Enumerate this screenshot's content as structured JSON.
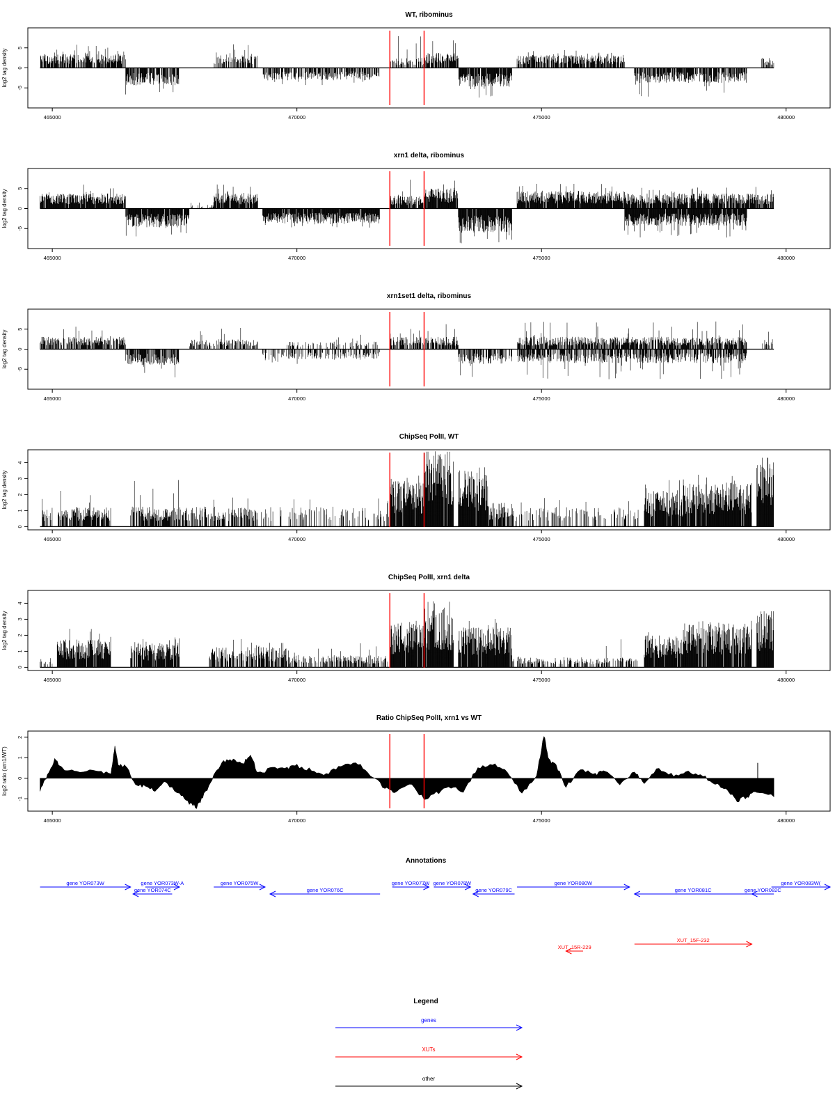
{
  "chart_data": [
    {
      "type": "bar",
      "title": "WT, ribominus",
      "ylabel": "log2 tag density",
      "xlim": [
        464500,
        480900
      ],
      "ylim": [
        -10,
        10
      ],
      "yticks": [
        -5,
        0,
        5
      ],
      "xticks": [
        465000,
        470000,
        475000,
        480000
      ],
      "x_start": 464750,
      "x_end": 479750,
      "markers": [
        471900,
        472600
      ],
      "segments": [
        {
          "from": 464750,
          "to": 466500,
          "strand": "+",
          "amp": 2.8,
          "max": 5.8,
          "density": 0.8
        },
        {
          "from": 466500,
          "to": 467600,
          "strand": "-",
          "amp": 3.5,
          "max": 6.8,
          "density": 0.8
        },
        {
          "from": 468300,
          "to": 469200,
          "strand": "+",
          "amp": 2.5,
          "max": 6.5,
          "density": 0.6
        },
        {
          "from": 469300,
          "to": 471700,
          "strand": "-",
          "amp": 2.5,
          "max": 4.5,
          "density": 0.7
        },
        {
          "from": 471900,
          "to": 472600,
          "strand": "+",
          "amp": 2.0,
          "max": 8.0,
          "density": 0.5
        },
        {
          "from": 472600,
          "to": 473300,
          "strand": "+",
          "amp": 3.0,
          "max": 8.0,
          "density": 0.9
        },
        {
          "from": 473300,
          "to": 474400,
          "strand": "-",
          "amp": 3.8,
          "max": 7.5,
          "density": 0.9
        },
        {
          "from": 474500,
          "to": 476700,
          "strand": "+",
          "amp": 2.6,
          "max": 4.5,
          "density": 0.8
        },
        {
          "from": 476900,
          "to": 479200,
          "strand": "-",
          "amp": 3.0,
          "max": 7.5,
          "density": 0.8
        },
        {
          "from": 479500,
          "to": 479750,
          "strand": "+",
          "amp": 2.0,
          "max": 4.0,
          "density": 0.6
        }
      ]
    },
    {
      "type": "bar",
      "title": "xrn1 delta, ribominus",
      "ylabel": "log2 tag density",
      "xlim": [
        464500,
        480900
      ],
      "ylim": [
        -10,
        10
      ],
      "yticks": [
        -5,
        0,
        5
      ],
      "xticks": [
        465000,
        470000,
        475000,
        480000
      ],
      "x_start": 464750,
      "x_end": 479750,
      "markers": [
        471900,
        472600
      ],
      "segments": [
        {
          "from": 464750,
          "to": 466500,
          "strand": "+",
          "amp": 3.0,
          "max": 6.0,
          "density": 0.95
        },
        {
          "from": 466500,
          "to": 467800,
          "strand": "-",
          "amp": 3.8,
          "max": 7.0,
          "density": 0.95
        },
        {
          "from": 467800,
          "to": 468300,
          "strand": "+",
          "amp": 0.8,
          "max": 1.5,
          "density": 0.2
        },
        {
          "from": 468300,
          "to": 469200,
          "strand": "+",
          "amp": 3.0,
          "max": 6.5,
          "density": 0.9
        },
        {
          "from": 469300,
          "to": 471700,
          "strand": "-",
          "amp": 3.0,
          "max": 5.0,
          "density": 0.95
        },
        {
          "from": 471900,
          "to": 472600,
          "strand": "+",
          "amp": 2.5,
          "max": 8.5,
          "density": 0.9
        },
        {
          "from": 472600,
          "to": 473300,
          "strand": "+",
          "amp": 4.0,
          "max": 9.0,
          "density": 0.95
        },
        {
          "from": 473300,
          "to": 474400,
          "strand": "-",
          "amp": 4.8,
          "max": 9.0,
          "density": 0.95
        },
        {
          "from": 474500,
          "to": 476700,
          "strand": "+",
          "amp": 3.5,
          "max": 6.5,
          "density": 0.95
        },
        {
          "from": 476700,
          "to": 479200,
          "strand": "-",
          "amp": 3.5,
          "max": 7.5,
          "density": 0.95
        },
        {
          "from": 476700,
          "to": 479750,
          "strand": "+",
          "amp": 3.0,
          "max": 5.5,
          "density": 0.9
        }
      ]
    },
    {
      "type": "bar",
      "title": "xrn1set1 delta, ribominus",
      "ylabel": "log2 tag density",
      "xlim": [
        464500,
        480900
      ],
      "ylim": [
        -10,
        10
      ],
      "yticks": [
        -5,
        0,
        5
      ],
      "xticks": [
        465000,
        470000,
        475000,
        480000
      ],
      "x_start": 464750,
      "x_end": 479750,
      "markers": [
        471900,
        472600
      ],
      "segments": [
        {
          "from": 464750,
          "to": 466500,
          "strand": "+",
          "amp": 2.5,
          "max": 5.8,
          "density": 0.7
        },
        {
          "from": 466500,
          "to": 467600,
          "strand": "-",
          "amp": 3.2,
          "max": 7.5,
          "density": 0.7
        },
        {
          "from": 467800,
          "to": 469200,
          "strand": "+",
          "amp": 2.0,
          "max": 5.5,
          "density": 0.5
        },
        {
          "from": 469300,
          "to": 471700,
          "strand": "-",
          "amp": 2.0,
          "max": 4.5,
          "density": 0.5
        },
        {
          "from": 469800,
          "to": 471700,
          "strand": "+",
          "amp": 1.5,
          "max": 5.0,
          "density": 0.3
        },
        {
          "from": 471900,
          "to": 472600,
          "strand": "+",
          "amp": 2.5,
          "max": 6.0,
          "density": 0.7
        },
        {
          "from": 472600,
          "to": 473300,
          "strand": "+",
          "amp": 2.5,
          "max": 7.0,
          "density": 0.7
        },
        {
          "from": 473300,
          "to": 474400,
          "strand": "-",
          "amp": 3.0,
          "max": 7.5,
          "density": 0.7
        },
        {
          "from": 474500,
          "to": 479200,
          "strand": "+",
          "amp": 2.5,
          "max": 7.0,
          "density": 0.8
        },
        {
          "from": 474500,
          "to": 479200,
          "strand": "-",
          "amp": 2.8,
          "max": 7.5,
          "density": 0.7
        },
        {
          "from": 479500,
          "to": 479750,
          "strand": "+",
          "amp": 2.0,
          "max": 4.5,
          "density": 0.6
        }
      ]
    },
    {
      "type": "bar",
      "title": "ChipSeq PolII, WT",
      "ylabel": "log2 tag density",
      "xlim": [
        464500,
        480900
      ],
      "ylim": [
        -0.2,
        4.8
      ],
      "yticks": [
        0,
        1,
        2,
        3,
        4
      ],
      "xticks": [
        465000,
        470000,
        475000,
        480000
      ],
      "x_start": 464750,
      "x_end": 479750,
      "markers": [
        471900,
        472600
      ],
      "segments": [
        {
          "from": 464750,
          "to": 465000,
          "strand": "+",
          "amp": 1.0,
          "max": 2.0,
          "density": 0.5
        },
        {
          "from": 465100,
          "to": 466200,
          "strand": "+",
          "amp": 1.0,
          "max": 2.6,
          "density": 0.8
        },
        {
          "from": 466600,
          "to": 467600,
          "strand": "+",
          "amp": 1.0,
          "max": 3.0,
          "density": 0.8
        },
        {
          "from": 467600,
          "to": 468300,
          "strand": "+",
          "amp": 1.0,
          "max": 2.2,
          "density": 0.5
        },
        {
          "from": 468300,
          "to": 469200,
          "strand": "+",
          "amp": 1.0,
          "max": 2.0,
          "density": 0.6
        },
        {
          "from": 469200,
          "to": 471900,
          "strand": "+",
          "amp": 1.0,
          "max": 1.8,
          "density": 0.3
        },
        {
          "from": 471900,
          "to": 472600,
          "strand": "+",
          "amp": 2.3,
          "max": 3.2,
          "density": 0.98
        },
        {
          "from": 472600,
          "to": 473200,
          "strand": "+",
          "amp": 3.8,
          "max": 4.7,
          "density": 0.98
        },
        {
          "from": 473300,
          "to": 473900,
          "strand": "+",
          "amp": 2.8,
          "max": 3.8,
          "density": 0.95
        },
        {
          "from": 473900,
          "to": 474400,
          "strand": "+",
          "amp": 1.2,
          "max": 2.0,
          "density": 0.8
        },
        {
          "from": 474400,
          "to": 477000,
          "strand": "+",
          "amp": 1.0,
          "max": 1.8,
          "density": 0.3
        },
        {
          "from": 477100,
          "to": 477900,
          "strand": "+",
          "amp": 1.8,
          "max": 3.0,
          "density": 0.95
        },
        {
          "from": 477900,
          "to": 479300,
          "strand": "+",
          "amp": 2.2,
          "max": 3.3,
          "density": 0.95
        },
        {
          "from": 479400,
          "to": 479750,
          "strand": "+",
          "amp": 3.8,
          "max": 4.3,
          "density": 0.98
        }
      ]
    },
    {
      "type": "bar",
      "title": "ChipSeq PolII, xrn1 delta",
      "ylabel": "log2 tag density",
      "xlim": [
        464500,
        480900
      ],
      "ylim": [
        -0.2,
        4.8
      ],
      "yticks": [
        0,
        1,
        2,
        3,
        4
      ],
      "xticks": [
        465000,
        470000,
        475000,
        480000
      ],
      "x_start": 464750,
      "x_end": 479750,
      "markers": [
        471900,
        472600
      ],
      "segments": [
        {
          "from": 464750,
          "to": 465000,
          "strand": "+",
          "amp": 0.5,
          "max": 0.8,
          "density": 0.4
        },
        {
          "from": 465100,
          "to": 466200,
          "strand": "+",
          "amp": 1.4,
          "max": 2.5,
          "density": 0.95
        },
        {
          "from": 466600,
          "to": 467600,
          "strand": "+",
          "amp": 1.2,
          "max": 1.9,
          "density": 0.9
        },
        {
          "from": 468200,
          "to": 469800,
          "strand": "+",
          "amp": 1.0,
          "max": 2.0,
          "density": 0.7
        },
        {
          "from": 469800,
          "to": 471900,
          "strand": "+",
          "amp": 0.6,
          "max": 1.5,
          "density": 0.5
        },
        {
          "from": 471900,
          "to": 472600,
          "strand": "+",
          "amp": 2.3,
          "max": 3.1,
          "density": 0.98
        },
        {
          "from": 472600,
          "to": 473200,
          "strand": "+",
          "amp": 3.0,
          "max": 4.2,
          "density": 0.98
        },
        {
          "from": 473300,
          "to": 474400,
          "strand": "+",
          "amp": 2.0,
          "max": 3.1,
          "density": 0.95
        },
        {
          "from": 474400,
          "to": 477000,
          "strand": "+",
          "amp": 0.5,
          "max": 1.8,
          "density": 0.4
        },
        {
          "from": 477100,
          "to": 477900,
          "strand": "+",
          "amp": 1.6,
          "max": 2.2,
          "density": 0.95
        },
        {
          "from": 477900,
          "to": 479300,
          "strand": "+",
          "amp": 2.2,
          "max": 2.9,
          "density": 0.95
        },
        {
          "from": 479400,
          "to": 479750,
          "strand": "+",
          "amp": 2.9,
          "max": 3.5,
          "density": 0.98
        }
      ]
    },
    {
      "type": "area",
      "title": "Ratio ChipSeq PolII, xrn1 vs WT",
      "ylabel": "log2 ratio (xrn1/WT)",
      "xlim": [
        464500,
        480900
      ],
      "ylim": [
        -1.6,
        2.3
      ],
      "yticks": [
        -1,
        0,
        1,
        2
      ],
      "xticks": [
        465000,
        470000,
        475000,
        480000
      ],
      "markers": [
        471900,
        472600
      ],
      "x": [
        464750,
        464900,
        465050,
        465200,
        465500,
        465900,
        466200,
        466280,
        466350,
        466500,
        466700,
        466900,
        467100,
        467300,
        467600,
        467800,
        467950,
        468100,
        468300,
        468500,
        468700,
        468900,
        469050,
        469200,
        469500,
        469800,
        470000,
        470300,
        470600,
        470900,
        471200,
        471500,
        471800,
        472000,
        472300,
        472600,
        472800,
        473100,
        473400,
        473700,
        474000,
        474300,
        474600,
        474900,
        475050,
        475150,
        475300,
        475500,
        475800,
        476100,
        476300,
        476600,
        476900,
        477100,
        477400,
        477700,
        478000,
        478300,
        478600,
        478800,
        479000,
        479200,
        479400,
        479750
      ],
      "y": [
        -0.6,
        0.1,
        0.9,
        0.5,
        0.3,
        0.4,
        0.2,
        1.5,
        0.6,
        0.6,
        -0.3,
        -0.4,
        -0.6,
        -0.2,
        -0.7,
        -1.2,
        -1.4,
        -0.8,
        0.1,
        0.8,
        0.9,
        0.7,
        1.2,
        0.2,
        0.5,
        0.5,
        0.6,
        0.4,
        0.2,
        0.6,
        0.8,
        0.2,
        -0.5,
        -0.7,
        -0.2,
        -1.0,
        -0.8,
        -0.4,
        -0.6,
        0.5,
        0.7,
        0.3,
        -0.7,
        0.1,
        2.1,
        0.9,
        0.6,
        -0.4,
        0.4,
        0.2,
        0.4,
        -0.3,
        0.3,
        -0.2,
        0.5,
        0.1,
        0.3,
        0.1,
        -0.3,
        -0.6,
        -1.1,
        -0.9,
        -0.6,
        -0.9
      ],
      "spikes": [
        [
          479420,
          0.75
        ]
      ]
    }
  ],
  "annotations": {
    "title": "Annotations",
    "xlim": [
      464500,
      480900
    ],
    "items": [
      {
        "label": "gene YOR073W",
        "from": 464750,
        "to": 466600,
        "color": "#0000ff",
        "row": 0
      },
      {
        "label": "gene YOR073W-A",
        "from": 466900,
        "to": 467600,
        "color": "#0000ff",
        "row": 0
      },
      {
        "label": "gene YOR074C",
        "from": 467450,
        "to": 466650,
        "color": "#0000ff",
        "row": 1
      },
      {
        "label": "gene YOR075W",
        "from": 468300,
        "to": 469350,
        "color": "#0000ff",
        "row": 0
      },
      {
        "label": "gene YOR076C",
        "from": 471700,
        "to": 469450,
        "color": "#0000ff",
        "row": 1
      },
      {
        "label": "gene YOR077W",
        "from": 471950,
        "to": 472700,
        "color": "#0000ff",
        "row": 0
      },
      {
        "label": "gene YOR078W",
        "from": 472800,
        "to": 473550,
        "color": "#0000ff",
        "row": 0
      },
      {
        "label": "gene YOR079C",
        "from": 474450,
        "to": 473600,
        "color": "#0000ff",
        "row": 1
      },
      {
        "label": "gene YOR080W",
        "from": 474500,
        "to": 476800,
        "color": "#0000ff",
        "row": 0
      },
      {
        "label": "gene YOR081C",
        "from": 479300,
        "to": 476900,
        "color": "#0000ff",
        "row": 1
      },
      {
        "label": "gene YOR082C",
        "from": 479750,
        "to": 479300,
        "color": "#0000ff",
        "row": 1
      },
      {
        "label": "gene YOR083W(",
        "from": 479700,
        "to": 480900,
        "color": "#0000ff",
        "row": 0
      },
      {
        "label": "XUT_15R-229",
        "from": 475850,
        "to": 475500,
        "color": "#ff0000",
        "row": 3
      },
      {
        "label": "XUT_15F-232",
        "from": 476900,
        "to": 479300,
        "color": "#ff0000",
        "row": 2
      }
    ]
  },
  "legend": {
    "title": "Legend",
    "items": [
      {
        "label": "genes",
        "color": "#0000ff"
      },
      {
        "label": "XUTs",
        "color": "#ff0000"
      },
      {
        "label": "other",
        "color": "#000000"
      }
    ]
  }
}
